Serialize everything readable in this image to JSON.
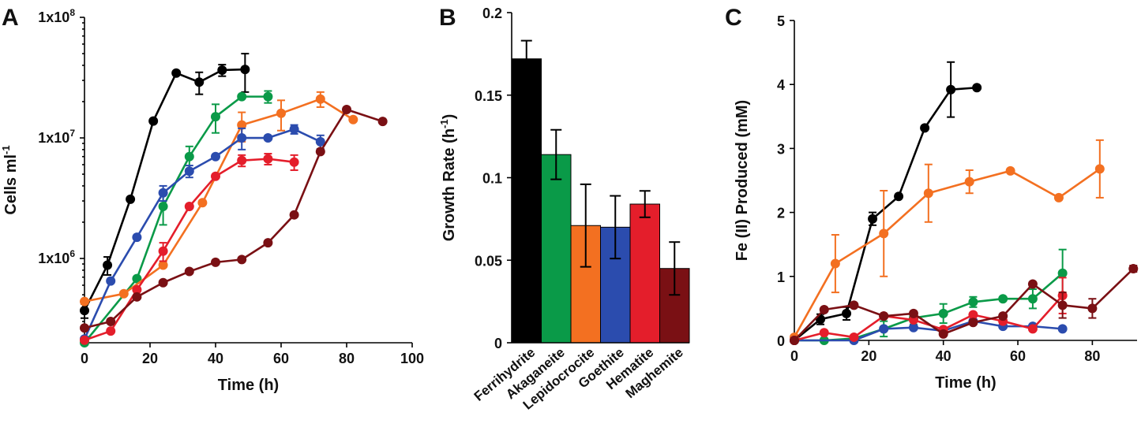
{
  "panels": {
    "A": {
      "letter": "A"
    },
    "B": {
      "letter": "B"
    },
    "C": {
      "letter": "C"
    }
  },
  "chart_data": [
    {
      "id": "A",
      "type": "line",
      "xlabel": "Time (h)",
      "ylabel": "Cells ml-1",
      "ylabel_base": "Cells ml",
      "ylabel_sup": "-1",
      "yscale": "log",
      "xlim": [
        0,
        100
      ],
      "ylim": [
        200000,
        100000000
      ],
      "xticks": [
        0,
        20,
        40,
        60,
        80,
        100
      ],
      "yticks": [
        {
          "value": 1000000,
          "base": "1x10",
          "exp": "6"
        },
        {
          "value": 10000000,
          "base": "1x10",
          "exp": "7"
        },
        {
          "value": 100000000,
          "base": "1x10",
          "exp": "8"
        }
      ],
      "series": [
        {
          "name": "Ferrihydrite",
          "color": "#000000",
          "points": [
            [
              0,
              370000,
              50000
            ],
            [
              7,
              880000,
              150000
            ],
            [
              14,
              3100000,
              0
            ],
            [
              21,
              13800000,
              0
            ],
            [
              28,
              34500000,
              0
            ],
            [
              35,
              29000000,
              6000000
            ],
            [
              42,
              36500000,
              4000000
            ],
            [
              49,
              37000000,
              13000000
            ]
          ]
        },
        {
          "name": "Akaganeite",
          "color": "#0a9a48",
          "points": [
            [
              0,
              200000,
              0
            ],
            [
              16,
              680000,
              0
            ],
            [
              24,
              2700000,
              800000
            ],
            [
              32,
              7000000,
              1500000
            ],
            [
              40,
              15000000,
              4000000
            ],
            [
              48,
              22000000,
              0
            ],
            [
              56,
              22000000,
              2500000
            ]
          ]
        },
        {
          "name": "Lepidocrocite",
          "color": "#f37021",
          "points": [
            [
              0,
              440000,
              0
            ],
            [
              12,
              510000,
              0
            ],
            [
              24,
              880000,
              0
            ],
            [
              36,
              2900000,
              0
            ],
            [
              48,
              12800000,
              3500000
            ],
            [
              60,
              16000000,
              4500000
            ],
            [
              72,
              21000000,
              3000000
            ],
            [
              82,
              14200000,
              0
            ]
          ]
        },
        {
          "name": "Goethite",
          "color": "#2b4cae",
          "points": [
            [
              0,
              215000,
              0
            ],
            [
              8,
              650000,
              0
            ],
            [
              16,
              1500000,
              0
            ],
            [
              24,
              3500000,
              500000
            ],
            [
              32,
              5300000,
              600000
            ],
            [
              40,
              7000000,
              0
            ],
            [
              48,
              10000000,
              2000000
            ],
            [
              56,
              10000000,
              0
            ],
            [
              64,
              11800000,
              1000000
            ],
            [
              72,
              9300000,
              1200000
            ]
          ]
        },
        {
          "name": "Hematite",
          "color": "#e41e2b",
          "points": [
            [
              0,
              210000,
              0
            ],
            [
              8,
              250000,
              0
            ],
            [
              16,
              550000,
              0
            ],
            [
              24,
              1150000,
              200000
            ],
            [
              32,
              2700000,
              0
            ],
            [
              40,
              4800000,
              0
            ],
            [
              48,
              6500000,
              700000
            ],
            [
              56,
              6700000,
              700000
            ],
            [
              64,
              6300000,
              900000
            ]
          ]
        },
        {
          "name": "Maghemite",
          "color": "#7a1014",
          "points": [
            [
              0,
              265000,
              0
            ],
            [
              8,
              300000,
              0
            ],
            [
              16,
              480000,
              0
            ],
            [
              24,
              630000,
              0
            ],
            [
              32,
              780000,
              0
            ],
            [
              40,
              930000,
              0
            ],
            [
              48,
              980000,
              0
            ],
            [
              56,
              1350000,
              0
            ],
            [
              64,
              2300000,
              0
            ],
            [
              72,
              7700000,
              0
            ],
            [
              80,
              17200000,
              0
            ],
            [
              91,
              13700000,
              0
            ]
          ]
        }
      ]
    },
    {
      "id": "B",
      "type": "bar",
      "ylabel": "Growth Rate (h-1)",
      "ylabel_base": "Growth Rate (h",
      "ylabel_sup": "-1",
      "ylabel_end": ")",
      "ylim": [
        0,
        0.2
      ],
      "yticks": [
        {
          "value": 0,
          "label": "0"
        },
        {
          "value": 0.05,
          "label": "0.05"
        },
        {
          "value": 0.1,
          "label": "0.1"
        },
        {
          "value": 0.15,
          "label": "0.15"
        },
        {
          "value": 0.2,
          "label": "0.2"
        }
      ],
      "categories": [
        "Ferrihydrite",
        "Akaganeite",
        "Lepidocrocite",
        "Goethite",
        "Hematite",
        "Maghemite"
      ],
      "values": [
        0.172,
        0.114,
        0.071,
        0.07,
        0.084,
        0.045
      ],
      "errors": [
        0.011,
        0.015,
        0.025,
        0.019,
        0.008,
        0.016
      ],
      "colors": [
        "#000000",
        "#0a9a48",
        "#f37021",
        "#2b4cae",
        "#e41e2b",
        "#7a1014"
      ]
    },
    {
      "id": "C",
      "type": "line",
      "xlabel": "Time (h)",
      "ylabel": "Fe (II) Produced (mM)",
      "xlim": [
        0,
        92
      ],
      "ylim": [
        0,
        5
      ],
      "xticks": [
        0,
        20,
        40,
        60,
        80
      ],
      "yticks": [
        0,
        1,
        2,
        3,
        4,
        5
      ],
      "series": [
        {
          "name": "Ferrihydrite",
          "color": "#000000",
          "points": [
            [
              0,
              0,
              0
            ],
            [
              7,
              0.33,
              0.08
            ],
            [
              14,
              0.42,
              0.1
            ],
            [
              21,
              1.9,
              0.1
            ],
            [
              28,
              2.25,
              0
            ],
            [
              35,
              3.32,
              0
            ],
            [
              42,
              3.92,
              0.43
            ],
            [
              49,
              3.95,
              0
            ]
          ]
        },
        {
          "name": "Lepidocrocite",
          "color": "#f37021",
          "points": [
            [
              0,
              0.05,
              0
            ],
            [
              11,
              1.2,
              0.45
            ],
            [
              24,
              1.67,
              0.67
            ],
            [
              36,
              2.3,
              0.45
            ],
            [
              47,
              2.48,
              0.18
            ],
            [
              58,
              2.65,
              0
            ],
            [
              71,
              2.23,
              0
            ],
            [
              82,
              2.68,
              0.45
            ]
          ]
        },
        {
          "name": "Akaganeite",
          "color": "#0a9a48",
          "points": [
            [
              0,
              0,
              0
            ],
            [
              8,
              0,
              0
            ],
            [
              16,
              0.03,
              0
            ],
            [
              24,
              0.18,
              0.12
            ],
            [
              32,
              0.35,
              0.1
            ],
            [
              40,
              0.42,
              0.15
            ],
            [
              48,
              0.6,
              0.08
            ],
            [
              56,
              0.65,
              0
            ],
            [
              64,
              0.65,
              0.15
            ],
            [
              72,
              1.05,
              0.37
            ]
          ]
        },
        {
          "name": "Goethite",
          "color": "#2b4cae",
          "points": [
            [
              0,
              0,
              0
            ],
            [
              16,
              0,
              0
            ],
            [
              24,
              0.18,
              0
            ],
            [
              32,
              0.2,
              0
            ],
            [
              40,
              0.15,
              0
            ],
            [
              48,
              0.3,
              0
            ],
            [
              56,
              0.22,
              0
            ],
            [
              64,
              0.22,
              0
            ],
            [
              72,
              0.18,
              0
            ]
          ]
        },
        {
          "name": "Hematite",
          "color": "#e41e2b",
          "points": [
            [
              0,
              0,
              0
            ],
            [
              8,
              0.12,
              0
            ],
            [
              16,
              0.05,
              0
            ],
            [
              24,
              0.38,
              0
            ],
            [
              32,
              0.32,
              0
            ],
            [
              40,
              0.17,
              0
            ],
            [
              48,
              0.4,
              0
            ],
            [
              56,
              0.3,
              0
            ],
            [
              64,
              0.18,
              0
            ],
            [
              72,
              0.7,
              0.28
            ]
          ]
        },
        {
          "name": "Maghemite",
          "color": "#7a1014",
          "points": [
            [
              0,
              0,
              0
            ],
            [
              8,
              0.48,
              0
            ],
            [
              16,
              0.55,
              0
            ],
            [
              24,
              0.38,
              0
            ],
            [
              32,
              0.42,
              0
            ],
            [
              40,
              0.1,
              0
            ],
            [
              48,
              0.28,
              0
            ],
            [
              56,
              0.38,
              0
            ],
            [
              64,
              0.88,
              0
            ],
            [
              72,
              0.55,
              0.2
            ],
            [
              80,
              0.5,
              0.15
            ],
            [
              91,
              1.12,
              0.05
            ]
          ]
        }
      ]
    }
  ]
}
